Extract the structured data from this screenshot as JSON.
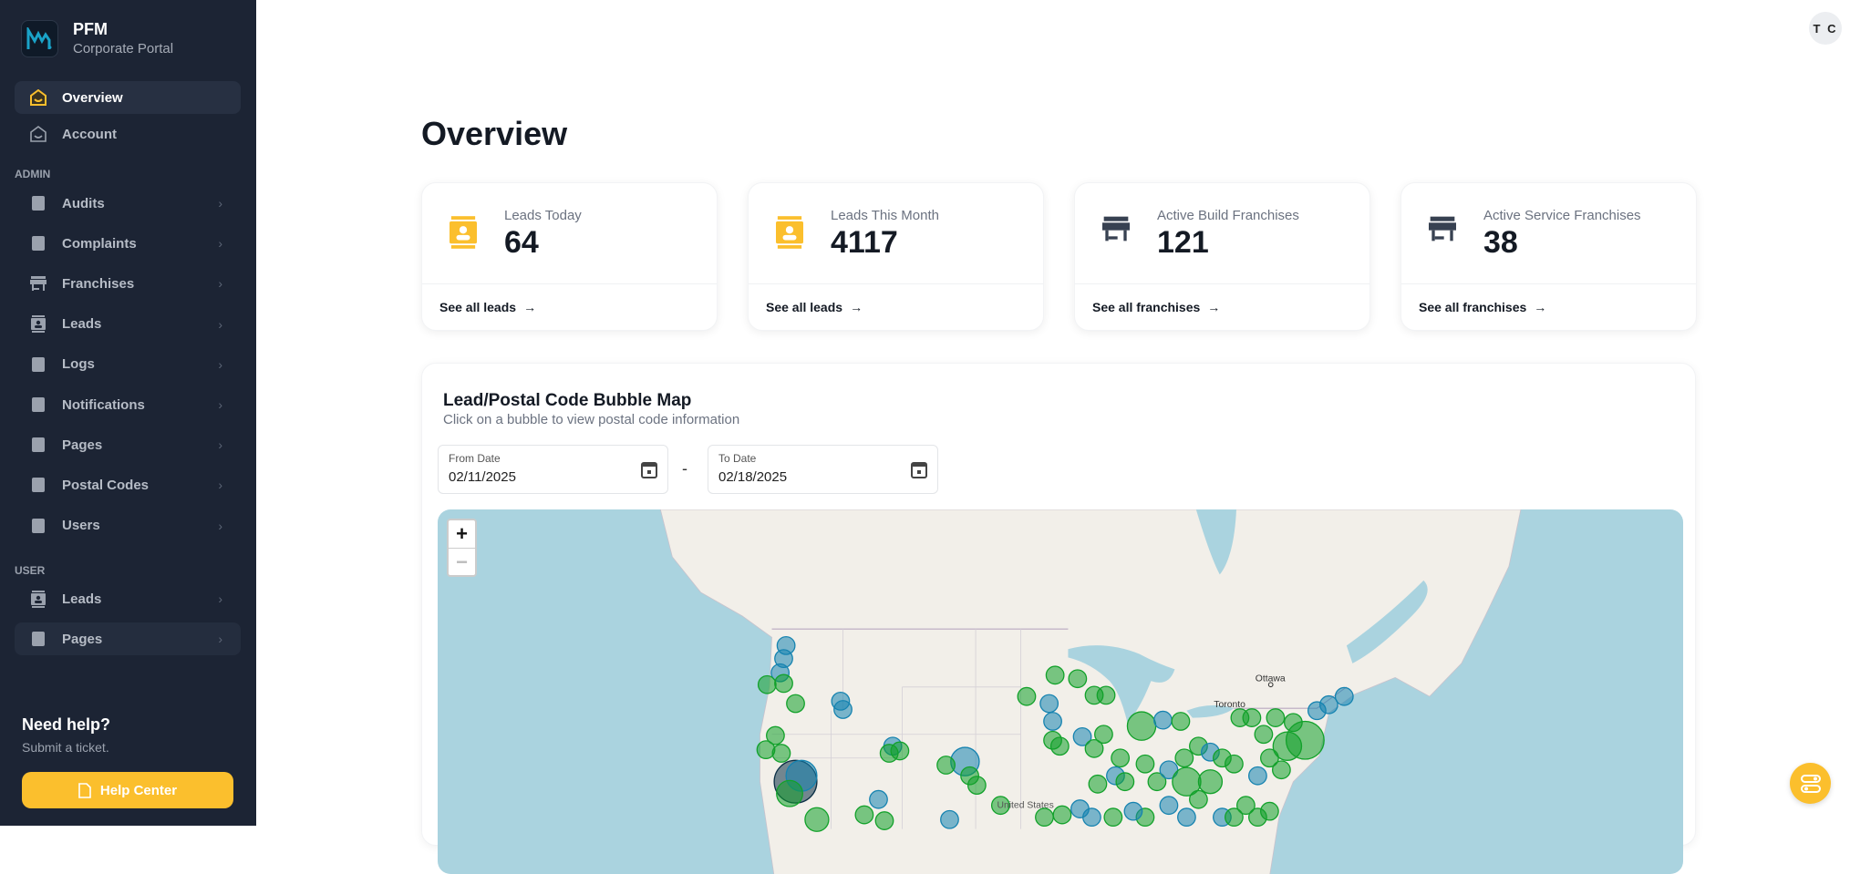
{
  "sidebar": {
    "brand": "PFM",
    "subtitle": "Corporate Portal",
    "top": [
      {
        "label": "Overview",
        "icon": "home-icon",
        "active": true
      },
      {
        "label": "Account",
        "icon": "home-outline-icon"
      }
    ],
    "admin_label": "ADMIN",
    "admin": [
      {
        "label": "Audits",
        "icon": "audit-file-icon"
      },
      {
        "label": "Complaints",
        "icon": "complaint-icon"
      },
      {
        "label": "Franchises",
        "icon": "store-icon"
      },
      {
        "label": "Leads",
        "icon": "contact-icon"
      },
      {
        "label": "Logs",
        "icon": "clipboard-icon"
      },
      {
        "label": "Notifications",
        "icon": "id-card-icon"
      },
      {
        "label": "Pages",
        "icon": "facebook-icon"
      },
      {
        "label": "Postal Codes",
        "icon": "mailbox-icon"
      },
      {
        "label": "Users",
        "icon": "users-icon"
      }
    ],
    "user_label": "USER",
    "user": [
      {
        "label": "Leads",
        "icon": "contact-icon"
      },
      {
        "label": "Pages",
        "icon": "facebook-icon"
      }
    ],
    "help_title": "Need help?",
    "help_sub": "Submit a ticket.",
    "help_button": "Help Center"
  },
  "header": {
    "avatar_initials": "T C"
  },
  "page_title": "Overview",
  "cards": [
    {
      "label": "Leads Today",
      "value": "64",
      "link": "See all leads",
      "icon": "contact-icon"
    },
    {
      "label": "Leads This Month",
      "value": "4117",
      "link": "See all leads",
      "icon": "contact-icon"
    },
    {
      "label": "Active Build Franchises",
      "value": "121",
      "link": "See all franchises",
      "icon": "store-icon"
    },
    {
      "label": "Active Service Franchises",
      "value": "38",
      "link": "See all franchises",
      "icon": "store-icon"
    }
  ],
  "map": {
    "title": "Lead/Postal Code Bubble Map",
    "subtitle": "Click on a bubble to view postal code information",
    "from_label": "From Date",
    "from_value": "02/11/2025",
    "to_label": "To Date",
    "to_value": "02/18/2025",
    "separator": "-",
    "zoom_in": "+",
    "zoom_out": "−",
    "labels": {
      "ottawa": "Ottawa",
      "toronto": "Toronto",
      "us": "United States"
    },
    "colors": {
      "build": "#12a12a",
      "service": "#1683b0",
      "dark": "#0b2f45",
      "water": "#aad3df",
      "land": "#f2efe9"
    }
  },
  "colors": {
    "accent": "#fbbf2d",
    "sidebar": "#1c2434"
  }
}
